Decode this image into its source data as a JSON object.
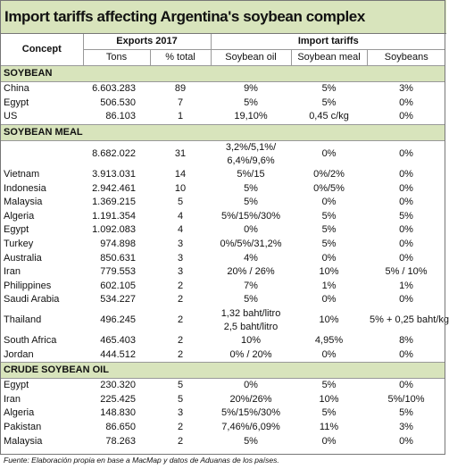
{
  "header": {
    "title": "Import tariffs affecting Argentina's soybean complex"
  },
  "table": {
    "group_headers": {
      "concept": "Concept",
      "exports": "Exports 2017",
      "tariffs": "Import tariffs"
    },
    "columns": [
      "Tons",
      "% total",
      "Soybean oil",
      "Soybean meal",
      "Soybeans"
    ],
    "sections": [
      {
        "title": "SOYBEAN",
        "rows": [
          [
            "China",
            "6.603.283",
            "89",
            [
              "9%"
            ],
            [
              "5%"
            ],
            [
              "3%"
            ]
          ],
          [
            "Egypt",
            "506.530",
            "7",
            [
              "5%"
            ],
            [
              "5%"
            ],
            [
              "0%"
            ]
          ],
          [
            "US",
            "86.103",
            "1",
            [
              "19,10%"
            ],
            [
              "0,45 c/kg"
            ],
            [
              "0%"
            ]
          ]
        ]
      },
      {
        "title": "SOYBEAN MEAL",
        "rows": [
          [
            null,
            "8.682.022",
            "31",
            [
              "3,2%/5,1%/",
              "6,4%/9,6%"
            ],
            [
              "0%"
            ],
            [
              "0%"
            ]
          ],
          [
            "Vietnam",
            "3.913.031",
            "14",
            [
              "5%/15"
            ],
            [
              "0%/2%"
            ],
            [
              "0%"
            ]
          ],
          [
            "Indonesia",
            "2.942.461",
            "10",
            [
              "5%"
            ],
            [
              "0%/5%"
            ],
            [
              "0%"
            ]
          ],
          [
            "Malaysia",
            "1.369.215",
            "5",
            [
              "5%"
            ],
            [
              "0%"
            ],
            [
              "0%"
            ]
          ],
          [
            "Algeria",
            "1.191.354",
            "4",
            [
              "5%/15%/30%"
            ],
            [
              "5%"
            ],
            [
              "5%"
            ]
          ],
          [
            "Egypt",
            "1.092.083",
            "4",
            [
              "0%"
            ],
            [
              "5%"
            ],
            [
              "0%"
            ]
          ],
          [
            "Turkey",
            "974.898",
            "3",
            [
              "0%/5%/31,2%"
            ],
            [
              "5%"
            ],
            [
              "0%"
            ]
          ],
          [
            "Australia",
            "850.631",
            "3",
            [
              "4%"
            ],
            [
              "0%"
            ],
            [
              "0%"
            ]
          ],
          [
            "Iran",
            "779.553",
            "3",
            [
              "20% / 26%"
            ],
            [
              "10%"
            ],
            [
              "5% / 10%"
            ]
          ],
          [
            "Philippines",
            "602.105",
            "2",
            [
              "7%"
            ],
            [
              "1%"
            ],
            [
              "1%"
            ]
          ],
          [
            "Saudi Arabia",
            "534.227",
            "2",
            [
              "5%"
            ],
            [
              "0%"
            ],
            [
              "0%"
            ]
          ],
          [
            "Thailand",
            "496.245",
            "2",
            [
              "1,32 baht/litro",
              "2,5 baht/litro"
            ],
            [
              "10%"
            ],
            [
              "5% + 0,25 baht/kg"
            ]
          ],
          [
            "South Africa",
            "465.403",
            "2",
            [
              "10%"
            ],
            [
              "4,95%"
            ],
            [
              "8%"
            ]
          ],
          [
            "Jordan",
            "444.512",
            "2",
            [
              "0% / 20%"
            ],
            [
              "0%"
            ],
            [
              "0%"
            ]
          ]
        ]
      },
      {
        "title": "CRUDE SOYBEAN OIL",
        "rows": [
          [
            "Egypt",
            "230.320",
            "5",
            [
              "0%"
            ],
            [
              "5%"
            ],
            [
              "0%"
            ]
          ],
          [
            "Iran",
            "225.425",
            "5",
            [
              "20%/26%"
            ],
            [
              "10%"
            ],
            [
              "5%/10%"
            ]
          ],
          [
            "Algeria",
            "148.830",
            "3",
            [
              "5%/15%/30%"
            ],
            [
              "5%"
            ],
            [
              "5%"
            ]
          ],
          [
            "Pakistan",
            "86.650",
            "2",
            [
              "7,46%/6,09%"
            ],
            [
              "11%"
            ],
            [
              "3%"
            ]
          ],
          [
            "Malaysia",
            "78.263",
            "2",
            [
              "5%"
            ],
            [
              "0%"
            ],
            [
              "0%"
            ]
          ]
        ]
      }
    ]
  },
  "footer": {
    "source": "Fuente: Elaboración propia en base a MacMap y datos de Aduanas de los países."
  }
}
